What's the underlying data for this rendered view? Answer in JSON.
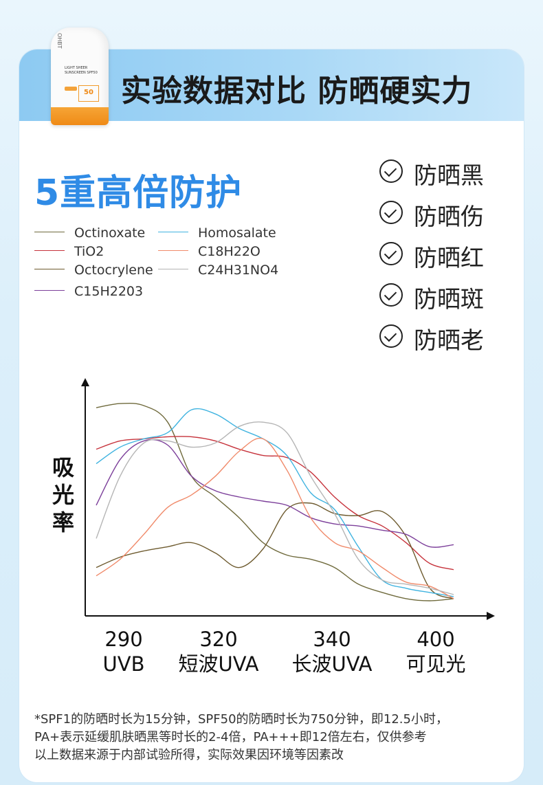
{
  "header": {
    "title": "实验数据对比 防晒硬实力"
  },
  "product": {
    "brand": "OHBT",
    "line1": "LIGHT SHEER",
    "line2": "SUNSCREEN SPF50",
    "spf": "50"
  },
  "main": {
    "subtitle": "5重高倍防护",
    "y_axis_label": "吸光率",
    "benefits": [
      "防晒黑",
      "防晒伤",
      "防晒红",
      "防晒斑",
      "防晒老"
    ],
    "footnote": [
      "*SPF1的防晒时长为15分钟，SPF50的防晒时长为750分钟，即12.5小时，",
      "PA+表示延缓肌肤晒黑等时长的2-4倍，PA+++即12倍左右，仅供参考",
      "以上数据来源于内部试验所得，实际效果因环境等因素改"
    ]
  },
  "chart_data": {
    "type": "line",
    "title": "",
    "xlabel": "",
    "ylabel": "吸光率",
    "x_ticks": [
      {
        "value": 290,
        "line1": "290",
        "line2": "UVB"
      },
      {
        "value": 320,
        "line1": "320",
        "line2": "短波UVA"
      },
      {
        "value": 340,
        "line1": "340",
        "line2": "长波UVA"
      },
      {
        "value": 400,
        "line1": "400",
        "line2": "可见光"
      }
    ],
    "x_positions": [
      280,
      288,
      296,
      304,
      312,
      320,
      328,
      336,
      344,
      352,
      360,
      368,
      376,
      384,
      392,
      400
    ],
    "ylim": [
      0,
      100
    ],
    "grid": false,
    "legend_position": "top-left",
    "series": [
      {
        "name": "Octinoxate",
        "color": "#6f6a3c",
        "values": [
          95,
          97,
          96,
          88,
          62,
          52,
          42,
          30,
          24,
          22,
          18,
          10,
          6,
          3,
          2,
          3
        ]
      },
      {
        "name": "TiO2",
        "color": "#c6323b",
        "values": [
          75,
          79,
          80,
          81,
          81,
          79,
          75,
          72,
          71,
          64,
          52,
          43,
          38,
          30,
          20,
          17
        ]
      },
      {
        "name": "Octocrylene",
        "color": "#6d5a2e",
        "values": [
          18,
          23,
          26,
          28,
          30,
          25,
          18,
          27,
          46,
          49,
          44,
          43,
          45,
          33,
          8,
          3
        ]
      },
      {
        "name": "C15H2203",
        "color": "#7c3f9a",
        "values": [
          48,
          70,
          79,
          77,
          62,
          55,
          52,
          50,
          48,
          42,
          39,
          38,
          36,
          34,
          28,
          29
        ]
      },
      {
        "name": "Homosalate",
        "color": "#3fb3e0",
        "values": [
          68,
          76,
          80,
          83,
          94,
          92,
          85,
          80,
          72,
          54,
          46,
          28,
          12,
          8,
          6,
          4
        ]
      },
      {
        "name": "C18H22O",
        "color": "#f08a6a",
        "values": [
          14,
          22,
          34,
          47,
          53,
          62,
          74,
          80,
          65,
          42,
          30,
          26,
          18,
          11,
          9,
          3
        ]
      },
      {
        "name": "C24H31NO4",
        "color": "#b5b5b5",
        "values": [
          32,
          62,
          78,
          79,
          76,
          78,
          86,
          88,
          83,
          62,
          44,
          22,
          12,
          10,
          8,
          5
        ]
      }
    ]
  }
}
